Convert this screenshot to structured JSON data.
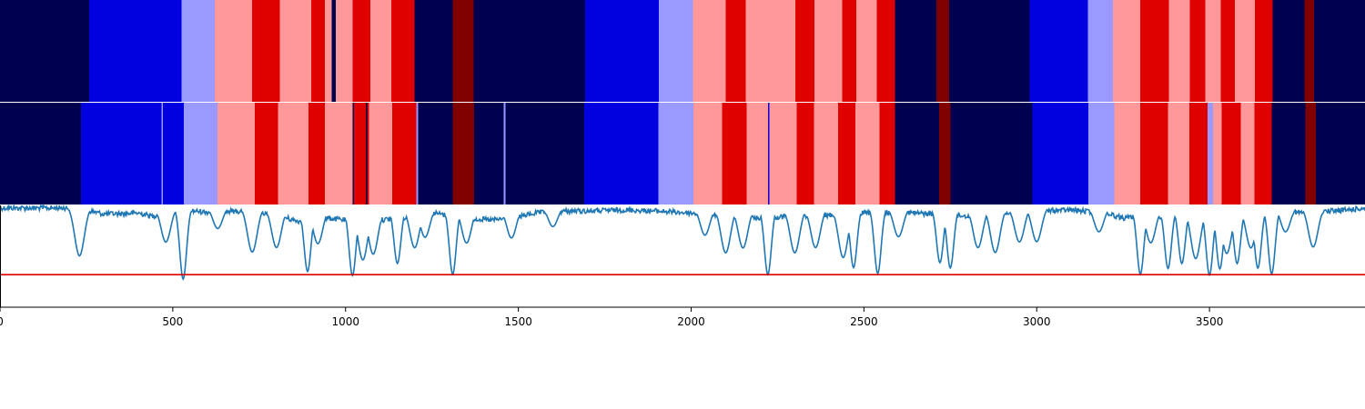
{
  "chart_data": {
    "type": "heatmap",
    "title": "",
    "xlabel": "",
    "ylabel": "",
    "xlim": [
      0,
      3950
    ],
    "x_ticks": [
      0,
      500,
      1000,
      1500,
      2000,
      2500,
      3000,
      3500
    ],
    "x_tick_labels": [
      "0",
      "500",
      "1000",
      "1500",
      "2000",
      "2500",
      "3000",
      "3500"
    ],
    "grid": false,
    "legend": "none",
    "colors": {
      "navy": "#000050",
      "blue": "#0000e0",
      "light_blue": "#9999ff",
      "pink": "#ff9999",
      "red": "#e00000",
      "dark_red": "#800000",
      "line": "#1f77b4",
      "threshold": "#e00000"
    },
    "state_tracks": [
      {
        "segments": [
          {
            "start": 0,
            "end": 258,
            "state": "navy"
          },
          {
            "start": 258,
            "end": 526,
            "state": "blue"
          },
          {
            "start": 526,
            "end": 622,
            "state": "light_blue"
          },
          {
            "start": 622,
            "end": 730,
            "state": "pink"
          },
          {
            "start": 730,
            "end": 810,
            "state": "red"
          },
          {
            "start": 810,
            "end": 900,
            "state": "pink"
          },
          {
            "start": 900,
            "end": 940,
            "state": "red"
          },
          {
            "start": 940,
            "end": 960,
            "state": "pink"
          },
          {
            "start": 960,
            "end": 972,
            "state": "navy"
          },
          {
            "start": 972,
            "end": 1020,
            "state": "pink"
          },
          {
            "start": 1020,
            "end": 1072,
            "state": "red"
          },
          {
            "start": 1072,
            "end": 1132,
            "state": "pink"
          },
          {
            "start": 1132,
            "end": 1200,
            "state": "red"
          },
          {
            "start": 1200,
            "end": 1310,
            "state": "navy"
          },
          {
            "start": 1310,
            "end": 1370,
            "state": "dark_red"
          },
          {
            "start": 1370,
            "end": 1693,
            "state": "navy"
          },
          {
            "start": 1693,
            "end": 1907,
            "state": "blue"
          },
          {
            "start": 1907,
            "end": 2005,
            "state": "light_blue"
          },
          {
            "start": 2005,
            "end": 2100,
            "state": "pink"
          },
          {
            "start": 2100,
            "end": 2158,
            "state": "red"
          },
          {
            "start": 2158,
            "end": 2302,
            "state": "pink"
          },
          {
            "start": 2302,
            "end": 2357,
            "state": "red"
          },
          {
            "start": 2357,
            "end": 2437,
            "state": "pink"
          },
          {
            "start": 2437,
            "end": 2478,
            "state": "red"
          },
          {
            "start": 2478,
            "end": 2537,
            "state": "pink"
          },
          {
            "start": 2537,
            "end": 2590,
            "state": "red"
          },
          {
            "start": 2590,
            "end": 2710,
            "state": "navy"
          },
          {
            "start": 2710,
            "end": 2746,
            "state": "dark_red"
          },
          {
            "start": 2746,
            "end": 2980,
            "state": "navy"
          },
          {
            "start": 2980,
            "end": 3148,
            "state": "blue"
          },
          {
            "start": 3148,
            "end": 3221,
            "state": "light_blue"
          },
          {
            "start": 3221,
            "end": 3300,
            "state": "pink"
          },
          {
            "start": 3300,
            "end": 3382,
            "state": "red"
          },
          {
            "start": 3382,
            "end": 3443,
            "state": "pink"
          },
          {
            "start": 3443,
            "end": 3488,
            "state": "red"
          },
          {
            "start": 3488,
            "end": 3532,
            "state": "pink"
          },
          {
            "start": 3532,
            "end": 3574,
            "state": "red"
          },
          {
            "start": 3574,
            "end": 3632,
            "state": "pink"
          },
          {
            "start": 3632,
            "end": 3683,
            "state": "red"
          },
          {
            "start": 3683,
            "end": 3775,
            "state": "navy"
          },
          {
            "start": 3775,
            "end": 3803,
            "state": "dark_red"
          },
          {
            "start": 3803,
            "end": 3950,
            "state": "navy"
          }
        ]
      },
      {
        "segments": [
          {
            "start": 0,
            "end": 235,
            "state": "navy"
          },
          {
            "start": 235,
            "end": 467,
            "state": "blue"
          },
          {
            "start": 467,
            "end": 472,
            "state": "light_blue"
          },
          {
            "start": 472,
            "end": 532,
            "state": "blue"
          },
          {
            "start": 532,
            "end": 630,
            "state": "light_blue"
          },
          {
            "start": 630,
            "end": 737,
            "state": "pink"
          },
          {
            "start": 737,
            "end": 805,
            "state": "red"
          },
          {
            "start": 805,
            "end": 893,
            "state": "pink"
          },
          {
            "start": 893,
            "end": 940,
            "state": "red"
          },
          {
            "start": 940,
            "end": 1020,
            "state": "pink"
          },
          {
            "start": 1020,
            "end": 1025,
            "state": "navy"
          },
          {
            "start": 1025,
            "end": 1058,
            "state": "red"
          },
          {
            "start": 1058,
            "end": 1063,
            "state": "navy"
          },
          {
            "start": 1063,
            "end": 1068,
            "state": "red"
          },
          {
            "start": 1068,
            "end": 1135,
            "state": "pink"
          },
          {
            "start": 1135,
            "end": 1205,
            "state": "red"
          },
          {
            "start": 1205,
            "end": 1210,
            "state": "light_blue"
          },
          {
            "start": 1210,
            "end": 1310,
            "state": "navy"
          },
          {
            "start": 1310,
            "end": 1372,
            "state": "dark_red"
          },
          {
            "start": 1372,
            "end": 1458,
            "state": "navy"
          },
          {
            "start": 1458,
            "end": 1463,
            "state": "light_blue"
          },
          {
            "start": 1463,
            "end": 1690,
            "state": "navy"
          },
          {
            "start": 1690,
            "end": 1905,
            "state": "blue"
          },
          {
            "start": 1905,
            "end": 2007,
            "state": "light_blue"
          },
          {
            "start": 2007,
            "end": 2090,
            "state": "pink"
          },
          {
            "start": 2090,
            "end": 2160,
            "state": "red"
          },
          {
            "start": 2160,
            "end": 2222,
            "state": "pink"
          },
          {
            "start": 2222,
            "end": 2227,
            "state": "blue"
          },
          {
            "start": 2227,
            "end": 2305,
            "state": "pink"
          },
          {
            "start": 2305,
            "end": 2355,
            "state": "red"
          },
          {
            "start": 2355,
            "end": 2425,
            "state": "pink"
          },
          {
            "start": 2425,
            "end": 2475,
            "state": "red"
          },
          {
            "start": 2475,
            "end": 2545,
            "state": "pink"
          },
          {
            "start": 2545,
            "end": 2590,
            "state": "red"
          },
          {
            "start": 2590,
            "end": 2718,
            "state": "navy"
          },
          {
            "start": 2718,
            "end": 2750,
            "state": "dark_red"
          },
          {
            "start": 2750,
            "end": 2988,
            "state": "navy"
          },
          {
            "start": 2988,
            "end": 3150,
            "state": "blue"
          },
          {
            "start": 3150,
            "end": 3225,
            "state": "light_blue"
          },
          {
            "start": 3225,
            "end": 3300,
            "state": "pink"
          },
          {
            "start": 3300,
            "end": 3380,
            "state": "red"
          },
          {
            "start": 3380,
            "end": 3442,
            "state": "pink"
          },
          {
            "start": 3442,
            "end": 3495,
            "state": "red"
          },
          {
            "start": 3495,
            "end": 3510,
            "state": "light_blue"
          },
          {
            "start": 3510,
            "end": 3535,
            "state": "pink"
          },
          {
            "start": 3535,
            "end": 3590,
            "state": "red"
          },
          {
            "start": 3590,
            "end": 3630,
            "state": "pink"
          },
          {
            "start": 3630,
            "end": 3680,
            "state": "red"
          },
          {
            "start": 3680,
            "end": 3778,
            "state": "navy"
          },
          {
            "start": 3778,
            "end": 3808,
            "state": "dark_red"
          },
          {
            "start": 3808,
            "end": 3950,
            "state": "navy"
          }
        ]
      }
    ],
    "signal": {
      "ylim": [
        -1.0,
        0.0
      ],
      "threshold": -0.68,
      "baseline": [
        [
          0,
          0
        ],
        [
          200,
          0
        ],
        [
          230,
          -0.08
        ],
        [
          260,
          -0.03
        ],
        [
          300,
          -0.06
        ],
        [
          400,
          -0.05
        ],
        [
          440,
          -0.08
        ],
        [
          520,
          -0.02
        ],
        [
          600,
          -0.04
        ],
        [
          700,
          -0.03
        ],
        [
          800,
          -0.07
        ],
        [
          850,
          -0.12
        ],
        [
          900,
          -0.15
        ],
        [
          950,
          -0.1
        ],
        [
          1000,
          -0.12
        ],
        [
          1050,
          -0.18
        ],
        [
          1100,
          -0.12
        ],
        [
          1150,
          -0.1
        ],
        [
          1200,
          -0.08
        ],
        [
          1260,
          -0.05
        ],
        [
          1300,
          -0.08
        ],
        [
          1360,
          -0.1
        ],
        [
          1420,
          -0.12
        ],
        [
          1480,
          -0.1
        ],
        [
          1550,
          -0.05
        ],
        [
          1650,
          -0.03
        ],
        [
          1700,
          -0.03
        ],
        [
          1800,
          -0.02
        ],
        [
          1900,
          -0.03
        ],
        [
          2000,
          -0.05
        ],
        [
          2100,
          -0.08
        ],
        [
          2200,
          -0.1
        ],
        [
          2300,
          -0.08
        ],
        [
          2400,
          -0.07
        ],
        [
          2500,
          -0.05
        ],
        [
          2600,
          -0.04
        ],
        [
          2700,
          -0.06
        ],
        [
          2800,
          -0.08
        ],
        [
          2900,
          -0.06
        ],
        [
          3000,
          -0.03
        ],
        [
          3100,
          -0.02
        ],
        [
          3200,
          -0.05
        ],
        [
          3250,
          -0.1
        ],
        [
          3300,
          -0.08
        ],
        [
          3400,
          -0.1
        ],
        [
          3500,
          -0.12
        ],
        [
          3600,
          -0.1
        ],
        [
          3700,
          -0.05
        ],
        [
          3800,
          -0.04
        ],
        [
          3900,
          -0.02
        ],
        [
          3950,
          0
        ]
      ],
      "dips": [
        [
          230,
          0.48
        ],
        [
          480,
          0.35
        ],
        [
          530,
          0.72
        ],
        [
          630,
          0.22
        ],
        [
          730,
          0.45
        ],
        [
          800,
          0.4
        ],
        [
          890,
          0.62
        ],
        [
          920,
          0.35
        ],
        [
          1020,
          0.66
        ],
        [
          1050,
          0.5
        ],
        [
          1080,
          0.45
        ],
        [
          1150,
          0.55
        ],
        [
          1200,
          0.4
        ],
        [
          1230,
          0.3
        ],
        [
          1310,
          0.66
        ],
        [
          1350,
          0.35
        ],
        [
          1480,
          0.3
        ],
        [
          1600,
          0.2
        ],
        [
          2040,
          0.28
        ],
        [
          2100,
          0.45
        ],
        [
          2150,
          0.4
        ],
        [
          2222,
          0.66
        ],
        [
          2300,
          0.45
        ],
        [
          2360,
          0.4
        ],
        [
          2440,
          0.5
        ],
        [
          2470,
          0.6
        ],
        [
          2540,
          0.66
        ],
        [
          2600,
          0.3
        ],
        [
          2720,
          0.55
        ],
        [
          2750,
          0.6
        ],
        [
          2830,
          0.4
        ],
        [
          2880,
          0.45
        ],
        [
          2950,
          0.35
        ],
        [
          3000,
          0.35
        ],
        [
          3180,
          0.25
        ],
        [
          3300,
          0.66
        ],
        [
          3330,
          0.35
        ],
        [
          3380,
          0.6
        ],
        [
          3420,
          0.55
        ],
        [
          3460,
          0.5
        ],
        [
          3500,
          0.66
        ],
        [
          3530,
          0.6
        ],
        [
          3550,
          0.45
        ],
        [
          3580,
          0.55
        ],
        [
          3620,
          0.4
        ],
        [
          3640,
          0.6
        ],
        [
          3680,
          0.66
        ],
        [
          3720,
          0.25
        ],
        [
          3800,
          0.4
        ]
      ]
    }
  }
}
